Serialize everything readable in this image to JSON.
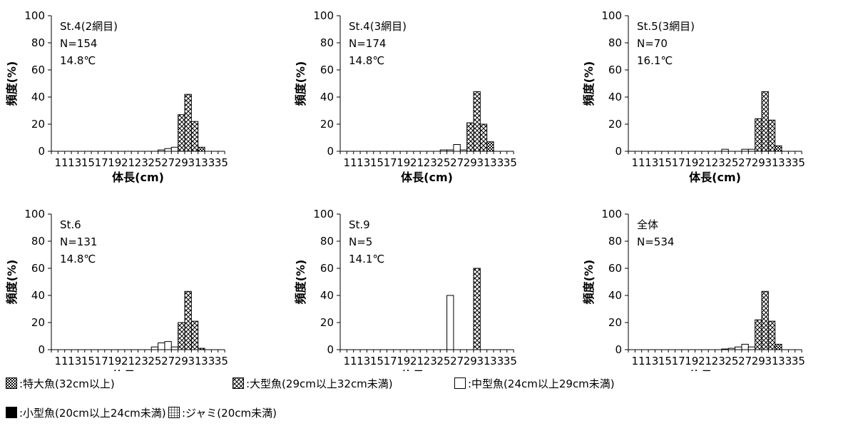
{
  "chart_data": [
    {
      "type": "bar",
      "annotations": [
        "St.4(2網目)",
        "N=154",
        "14.8℃"
      ],
      "xlabel": "体長(cm)",
      "ylabel": "頻度(%)",
      "x_tick_labels": [
        "11",
        "13",
        "15",
        "17",
        "19",
        "21",
        "23",
        "25",
        "27",
        "29",
        "31",
        "33",
        "35"
      ],
      "ylim": [
        0,
        100
      ],
      "y_ticks": [
        0,
        20,
        40,
        60,
        80,
        100
      ],
      "bars": [
        {
          "x": 26,
          "value": 1,
          "category": "medium"
        },
        {
          "x": 27,
          "value": 2,
          "category": "medium"
        },
        {
          "x": 28,
          "value": 3,
          "category": "medium"
        },
        {
          "x": 29,
          "value": 27,
          "category": "large"
        },
        {
          "x": 30,
          "value": 42,
          "category": "large"
        },
        {
          "x": 31,
          "value": 22,
          "category": "large"
        },
        {
          "x": 32,
          "value": 3,
          "category": "xlarge"
        }
      ]
    },
    {
      "type": "bar",
      "annotations": [
        "St.4(3網目)",
        "N=174",
        "14.8℃"
      ],
      "xlabel": "体長(cm)",
      "ylabel": "頻度(%)",
      "x_tick_labels": [
        "11",
        "13",
        "15",
        "17",
        "19",
        "21",
        "23",
        "25",
        "27",
        "29",
        "31",
        "33",
        "35"
      ],
      "ylim": [
        0,
        100
      ],
      "y_ticks": [
        0,
        20,
        40,
        60,
        80,
        100
      ],
      "bars": [
        {
          "x": 25,
          "value": 1,
          "category": "medium"
        },
        {
          "x": 26,
          "value": 1,
          "category": "medium"
        },
        {
          "x": 27,
          "value": 5,
          "category": "medium"
        },
        {
          "x": 28,
          "value": 1,
          "category": "medium"
        },
        {
          "x": 29,
          "value": 21,
          "category": "large"
        },
        {
          "x": 30,
          "value": 44,
          "category": "large"
        },
        {
          "x": 31,
          "value": 20,
          "category": "large"
        },
        {
          "x": 32,
          "value": 7,
          "category": "xlarge"
        }
      ]
    },
    {
      "type": "bar",
      "annotations": [
        "St.5(3網目)",
        "N=70",
        "16.1℃"
      ],
      "xlabel": "体長(cm)",
      "ylabel": "頻度(%)",
      "x_tick_labels": [
        "11",
        "13",
        "15",
        "17",
        "19",
        "21",
        "23",
        "25",
        "27",
        "29",
        "31",
        "33",
        "35"
      ],
      "ylim": [
        0,
        100
      ],
      "y_ticks": [
        0,
        20,
        40,
        60,
        80,
        100
      ],
      "bars": [
        {
          "x": 24,
          "value": 1.5,
          "category": "medium"
        },
        {
          "x": 27,
          "value": 1.5,
          "category": "medium"
        },
        {
          "x": 28,
          "value": 1.5,
          "category": "medium"
        },
        {
          "x": 29,
          "value": 24,
          "category": "large"
        },
        {
          "x": 30,
          "value": 44,
          "category": "large"
        },
        {
          "x": 31,
          "value": 23,
          "category": "large"
        },
        {
          "x": 32,
          "value": 4,
          "category": "xlarge"
        }
      ]
    },
    {
      "type": "bar",
      "annotations": [
        "St.6",
        "N=131",
        "14.8℃"
      ],
      "xlabel": "体長(cm)",
      "ylabel": "頻度(%)",
      "x_tick_labels": [
        "11",
        "13",
        "15",
        "17",
        "19",
        "21",
        "23",
        "25",
        "27",
        "29",
        "31",
        "33",
        "35"
      ],
      "ylim": [
        0,
        100
      ],
      "y_ticks": [
        0,
        20,
        40,
        60,
        80,
        100
      ],
      "bars": [
        {
          "x": 25,
          "value": 2,
          "category": "medium"
        },
        {
          "x": 26,
          "value": 5,
          "category": "medium"
        },
        {
          "x": 27,
          "value": 6,
          "category": "medium"
        },
        {
          "x": 28,
          "value": 2,
          "category": "medium"
        },
        {
          "x": 29,
          "value": 20,
          "category": "large"
        },
        {
          "x": 30,
          "value": 43,
          "category": "large"
        },
        {
          "x": 31,
          "value": 21,
          "category": "large"
        },
        {
          "x": 32,
          "value": 1,
          "category": "xlarge"
        }
      ]
    },
    {
      "type": "bar",
      "annotations": [
        "St.9",
        "N=5",
        "14.1℃"
      ],
      "xlabel": "体長(cm)",
      "ylabel": "頻度(%)",
      "x_tick_labels": [
        "11",
        "13",
        "15",
        "17",
        "19",
        "21",
        "23",
        "25",
        "27",
        "29",
        "31",
        "33",
        "35"
      ],
      "ylim": [
        0,
        100
      ],
      "y_ticks": [
        0,
        20,
        40,
        60,
        80,
        100
      ],
      "bars": [
        {
          "x": 26,
          "value": 40,
          "category": "medium"
        },
        {
          "x": 30,
          "value": 60,
          "category": "large"
        }
      ]
    },
    {
      "type": "bar",
      "annotations": [
        "全体",
        "N=534"
      ],
      "xlabel": "体長(cm)",
      "ylabel": "頻度(%)",
      "x_tick_labels": [
        "11",
        "13",
        "15",
        "17",
        "19",
        "21",
        "23",
        "25",
        "27",
        "29",
        "31",
        "33",
        "35"
      ],
      "ylim": [
        0,
        100
      ],
      "y_ticks": [
        0,
        20,
        40,
        60,
        80,
        100
      ],
      "bars": [
        {
          "x": 24,
          "value": 0.5,
          "category": "medium"
        },
        {
          "x": 25,
          "value": 1,
          "category": "medium"
        },
        {
          "x": 26,
          "value": 2,
          "category": "medium"
        },
        {
          "x": 27,
          "value": 4,
          "category": "medium"
        },
        {
          "x": 28,
          "value": 2,
          "category": "medium"
        },
        {
          "x": 29,
          "value": 22,
          "category": "large"
        },
        {
          "x": 30,
          "value": 43,
          "category": "large"
        },
        {
          "x": 31,
          "value": 21,
          "category": "large"
        },
        {
          "x": 32,
          "value": 4,
          "category": "xlarge"
        }
      ]
    }
  ],
  "legend": [
    {
      "key": "xlarge",
      "label": ":特大魚(32cm以上)"
    },
    {
      "key": "large",
      "label": ":大型魚(29cm以上32cm未満)"
    },
    {
      "key": "medium",
      "label": ":中型魚(24cm以上29cm未満)"
    },
    {
      "key": "small",
      "label": ":小型魚(20cm以上24cm未満)"
    },
    {
      "key": "jami",
      "label": ":ジャミ(20cm未満)"
    }
  ]
}
